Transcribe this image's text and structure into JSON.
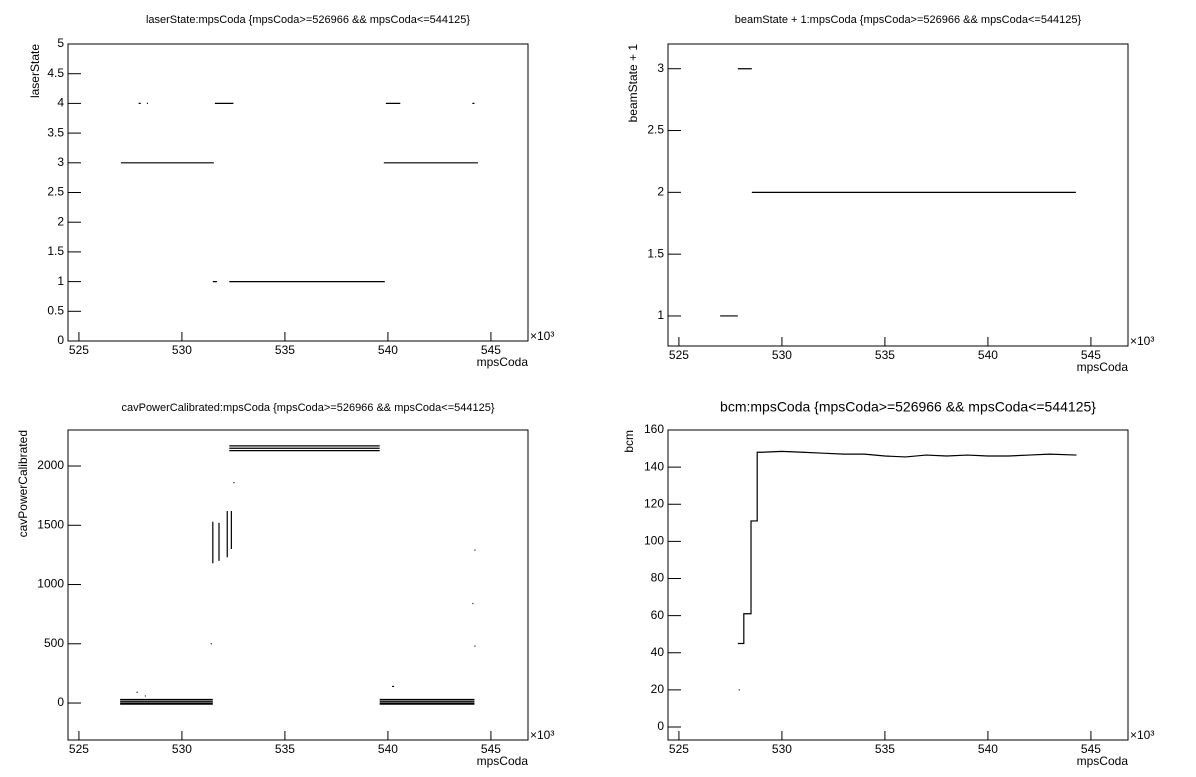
{
  "chart_data": [
    {
      "type": "line",
      "title": "laserState:mpsCoda {mpsCoda>=526966 && mpsCoda<=544125}",
      "x_label": "mpsCoda",
      "y_label": "laserState",
      "x_exponent": "×10³",
      "color": "#000000",
      "xlim": [
        524.47,
        546.8
      ],
      "xticks": [
        525,
        530,
        535,
        540,
        545
      ],
      "ylim": [
        0,
        5
      ],
      "yticks": [
        0,
        0.5,
        1,
        1.5,
        2,
        2.5,
        3,
        3.5,
        4,
        4.5,
        5
      ],
      "x": [
        527.04,
        531.55,
        null,
        527.9,
        528.0,
        null,
        528.3,
        528.35,
        null,
        531.6,
        532.5,
        null,
        531.5,
        531.7,
        null,
        532.3,
        539.85,
        null,
        539.9,
        540.6,
        null,
        544.1,
        544.2,
        null,
        539.8,
        544.37
      ],
      "values": [
        3,
        3,
        null,
        4,
        4,
        null,
        4,
        4,
        null,
        4,
        4,
        null,
        1,
        1,
        null,
        1,
        1,
        null,
        4,
        4,
        null,
        4,
        4,
        null,
        3,
        3
      ]
    },
    {
      "type": "line",
      "title": "beamState + 1:mpsCoda {mpsCoda>=526966 && mpsCoda<=544125}",
      "x_label": "mpsCoda",
      "y_label": "beamState + 1",
      "x_exponent": "×10³",
      "color": "#000000",
      "xlim": [
        524.47,
        546.8
      ],
      "xticks": [
        525,
        530,
        535,
        540,
        545
      ],
      "ylim": [
        0.757,
        3.2
      ],
      "yticks": [
        1,
        1.5,
        2,
        2.5,
        3
      ],
      "x": [
        527.0,
        527.86,
        null,
        527.86,
        528.54,
        null,
        528.54,
        544.27
      ],
      "values": [
        1,
        1,
        null,
        3,
        3,
        null,
        2,
        2
      ]
    },
    {
      "type": "line",
      "title": "cavPowerCalibrated:mpsCoda {mpsCoda>=526966 && mpsCoda<=544125}",
      "x_label": "mpsCoda",
      "y_label": "cavPowerCalibrated",
      "x_exponent": "×10³",
      "color": "#000000",
      "xlim": [
        524.47,
        546.8
      ],
      "xticks": [
        525,
        530,
        535,
        540,
        545
      ],
      "ylim": [
        -312,
        2304
      ],
      "yticks": [
        0,
        500,
        1000,
        1500,
        2000
      ],
      "x": [
        527.0,
        531.5,
        null,
        527.0,
        531.5,
        null,
        527.0,
        531.5,
        null,
        527.0,
        531.5,
        null,
        532.3,
        539.6,
        null,
        532.3,
        539.6,
        null,
        532.3,
        539.6,
        null,
        531.5,
        531.5,
        null,
        531.8,
        531.8,
        null,
        532.2,
        532.2,
        null,
        532.4,
        532.4,
        null,
        539.6,
        544.2,
        null,
        539.6,
        544.2,
        null,
        539.6,
        544.2,
        null,
        539.6,
        544.2,
        null,
        531.4,
        531.45,
        null,
        532.5,
        532.55,
        null,
        544.2,
        544.25,
        null,
        544.1,
        544.15,
        null,
        544.2,
        544.25,
        null,
        540.2,
        540.3,
        null,
        527.8,
        527.85,
        null,
        528.2,
        528.25
      ],
      "values": [
        30,
        30,
        null,
        15,
        15,
        null,
        0,
        0,
        null,
        -10,
        -10,
        null,
        2170,
        2170,
        null,
        2150,
        2150,
        null,
        2130,
        2130,
        null,
        1180,
        1530,
        null,
        1200,
        1520,
        null,
        1230,
        1620,
        null,
        1300,
        1620,
        null,
        30,
        30,
        null,
        15,
        15,
        null,
        0,
        0,
        null,
        -10,
        -10,
        null,
        500,
        500,
        null,
        1860,
        1860,
        null,
        1290,
        1290,
        null,
        840,
        840,
        null,
        480,
        480,
        null,
        140,
        140,
        null,
        90,
        90,
        null,
        60,
        60
      ]
    },
    {
      "type": "line",
      "title": "bcm:mpsCoda {mpsCoda>=526966 && mpsCoda<=544125}",
      "x_label": "mpsCoda",
      "y_label": "bcm",
      "x_exponent": "×10³",
      "color": "#000000",
      "xlim": [
        524.47,
        546.8
      ],
      "xticks": [
        525,
        530,
        535,
        540,
        545
      ],
      "ylim": [
        -7,
        160
      ],
      "yticks": [
        0,
        20,
        40,
        60,
        80,
        100,
        120,
        140,
        160
      ],
      "x": [
        527.9,
        527.95,
        null,
        527.86,
        528.15,
        528.15,
        528.5,
        528.5,
        528.8,
        528.8,
        529,
        530,
        531,
        532,
        533,
        534,
        535,
        536,
        537,
        538,
        539,
        540,
        541,
        542,
        543,
        544.3
      ],
      "values": [
        20,
        20,
        null,
        45,
        45,
        61,
        61,
        111,
        111,
        148,
        148,
        148.5,
        148,
        147.5,
        147,
        147,
        146,
        145.5,
        146.5,
        146,
        146.5,
        146,
        146,
        146.5,
        147,
        146.5
      ]
    }
  ]
}
